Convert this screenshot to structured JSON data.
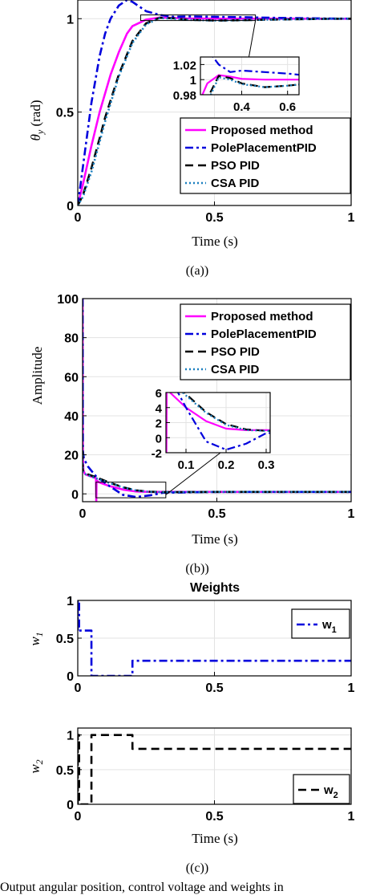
{
  "chart_data": [
    {
      "id": "a",
      "type": "line",
      "caption": "((a))",
      "xlabel": "Time (s)",
      "ylabel": "θ_y (rad)",
      "xlim": [
        0,
        1
      ],
      "ylim": [
        0,
        1.1
      ],
      "xticks": [
        0,
        0.5,
        1
      ],
      "xtick_labels": [
        "0",
        "0.5",
        "1"
      ],
      "yticks": [
        0,
        0.5,
        1
      ],
      "ytick_labels": [
        "0",
        "0.5",
        "1"
      ],
      "grid": true,
      "legend_position": "bottom-right",
      "series": [
        {
          "name": "Proposed method",
          "color": "#ff00ff",
          "dash": "solid",
          "x": [
            0,
            0.02,
            0.05,
            0.08,
            0.1,
            0.12,
            0.15,
            0.18,
            0.2,
            0.25,
            0.3,
            0.35,
            0.4,
            0.5,
            0.6,
            0.7,
            0.8,
            0.9,
            1.0
          ],
          "y": [
            0,
            0.12,
            0.32,
            0.5,
            0.6,
            0.7,
            0.82,
            0.92,
            0.96,
            0.995,
            1.006,
            1.004,
            1.001,
            1.0,
            1.0,
            1.0,
            1.0,
            1.0,
            1.0
          ]
        },
        {
          "name": "PolePlacementPID",
          "color": "#0000dd",
          "dash": "dashdot",
          "x": [
            0,
            0.02,
            0.05,
            0.08,
            0.1,
            0.12,
            0.15,
            0.18,
            0.2,
            0.22,
            0.25,
            0.3,
            0.35,
            0.4,
            0.5,
            0.6,
            0.7,
            0.8,
            0.9,
            1.0
          ],
          "y": [
            0,
            0.22,
            0.55,
            0.8,
            0.92,
            1.0,
            1.07,
            1.1,
            1.09,
            1.07,
            1.04,
            1.02,
            1.01,
            1.012,
            1.01,
            1.008,
            1.005,
            1.003,
            1.001,
            1.0
          ]
        },
        {
          "name": "PSO PID",
          "color": "#000000",
          "dash": "dash",
          "x": [
            0,
            0.02,
            0.05,
            0.08,
            0.1,
            0.15,
            0.2,
            0.25,
            0.3,
            0.35,
            0.4,
            0.5,
            0.6,
            0.7,
            0.8,
            0.9,
            1.0
          ],
          "y": [
            0,
            0.06,
            0.2,
            0.36,
            0.47,
            0.7,
            0.88,
            0.975,
            1.005,
            1.002,
            0.995,
            0.99,
            0.992,
            0.995,
            0.997,
            0.999,
            1.0
          ]
        },
        {
          "name": "CSA PID",
          "color": "#1a7fbf",
          "dash": "dot",
          "x": [
            0,
            0.02,
            0.05,
            0.08,
            0.1,
            0.15,
            0.2,
            0.25,
            0.3,
            0.35,
            0.4,
            0.5,
            0.6,
            0.7,
            0.8,
            0.9,
            1.0
          ],
          "y": [
            0,
            0.05,
            0.18,
            0.34,
            0.45,
            0.69,
            0.87,
            0.97,
            1.003,
            1.0,
            0.994,
            0.99,
            0.992,
            0.995,
            0.997,
            0.999,
            1.0
          ]
        }
      ],
      "inset": {
        "xlim": [
          0.22,
          0.65
        ],
        "ylim": [
          0.98,
          1.03
        ],
        "xticks": [
          0.4,
          0.6
        ],
        "xtick_labels": [
          "0.4",
          "0.6"
        ],
        "yticks": [
          0.98,
          1.0,
          1.02
        ],
        "ytick_labels": [
          "0.98",
          "1",
          "1.02"
        ],
        "zoom_x": [
          0.23,
          0.65
        ],
        "zoom_y": [
          0.99,
          1.02
        ]
      }
    },
    {
      "id": "b",
      "type": "line",
      "caption": "((b))",
      "xlabel": "Time (s)",
      "ylabel": "Amplitude",
      "xlim": [
        0,
        1
      ],
      "ylim": [
        -4,
        100
      ],
      "xticks": [
        0,
        0.5,
        1
      ],
      "xtick_labels": [
        "0",
        "0.5",
        "1"
      ],
      "yticks": [
        0,
        20,
        40,
        60,
        80,
        100
      ],
      "ytick_labels": [
        "0",
        "20",
        "40",
        "60",
        "80",
        "100"
      ],
      "grid": true,
      "legend_position": "top-right",
      "series": [
        {
          "name": "Proposed method",
          "color": "#ff00ff",
          "dash": "solid",
          "x": [
            0,
            0.001,
            0.003,
            0.01,
            0.03,
            0.05,
            0.051,
            0.052,
            0.06,
            0.1,
            0.15,
            0.2,
            0.25,
            0.3,
            0.5,
            1.0
          ],
          "y": [
            100,
            20,
            12,
            10,
            9,
            8,
            -4,
            7,
            6,
            4,
            2.2,
            1.2,
            1.0,
            1.0,
            1.0,
            1.0
          ]
        },
        {
          "name": "PolePlacementPID",
          "color": "#0000dd",
          "dash": "dashdot",
          "x": [
            0,
            0.001,
            0.005,
            0.02,
            0.05,
            0.1,
            0.15,
            0.2,
            0.25,
            0.3,
            0.5,
            1.0
          ],
          "y": [
            100,
            22,
            18,
            14,
            9,
            4,
            -0.5,
            -1.6,
            -0.8,
            0.6,
            1.0,
            1.0
          ]
        },
        {
          "name": "PSO PID",
          "color": "#000000",
          "dash": "dash",
          "x": [
            0,
            0.001,
            0.005,
            0.02,
            0.05,
            0.1,
            0.15,
            0.2,
            0.25,
            0.3,
            0.5,
            1.0
          ],
          "y": [
            22,
            12,
            11,
            10,
            8.5,
            5.8,
            3.4,
            1.8,
            1.1,
            0.9,
            1.0,
            1.0
          ]
        },
        {
          "name": "CSA PID",
          "color": "#1a7fbf",
          "dash": "dot",
          "x": [
            0,
            0.001,
            0.005,
            0.02,
            0.05,
            0.1,
            0.15,
            0.2,
            0.25,
            0.3,
            0.5,
            1.0
          ],
          "y": [
            20,
            11.5,
            10.5,
            9.5,
            8,
            5.6,
            3.3,
            1.7,
            1.0,
            0.9,
            1.0,
            1.0
          ]
        }
      ],
      "inset": {
        "xlim": [
          0.05,
          0.31
        ],
        "ylim": [
          -2,
          6
        ],
        "xticks": [
          0.1,
          0.2,
          0.3
        ],
        "xtick_labels": [
          "0.1",
          "0.2",
          "0.3"
        ],
        "yticks": [
          -2,
          0,
          2,
          4,
          6
        ],
        "ytick_labels": [
          "-2",
          "0",
          "2",
          "4",
          "6"
        ],
        "zoom_x": [
          0.05,
          0.31
        ],
        "zoom_y": [
          -2,
          6
        ]
      }
    },
    {
      "id": "c1",
      "type": "line",
      "title": "Weights",
      "ylabel": "w_1",
      "xlim": [
        0,
        1
      ],
      "ylim": [
        0,
        1
      ],
      "xticks": [
        0,
        0.5,
        1
      ],
      "xtick_labels": [
        "0",
        "0.5",
        "1"
      ],
      "yticks": [
        0,
        0.5,
        1
      ],
      "ytick_labels": [
        "0",
        "0.5",
        "1"
      ],
      "grid": true,
      "legend_position": "top-right",
      "series": [
        {
          "name": "w_1",
          "color": "#0000dd",
          "dash": "dashdot",
          "x": [
            0,
            0,
            0.005,
            0.005,
            0.05,
            0.05,
            0.2,
            0.2,
            1.0
          ],
          "y": [
            0.6,
            1.0,
            1.0,
            0.6,
            0.6,
            0,
            0,
            0.2,
            0.2
          ]
        }
      ]
    },
    {
      "id": "c2",
      "type": "line",
      "caption": "((c))",
      "xlabel": "Time (s)",
      "ylabel": "w_2",
      "xlim": [
        0,
        1
      ],
      "ylim": [
        0,
        1.1
      ],
      "xticks": [
        0,
        0.5,
        1
      ],
      "xtick_labels": [
        "0",
        "0.5",
        "1"
      ],
      "yticks": [
        0,
        0.5,
        1
      ],
      "ytick_labels": [
        "0",
        "0.5",
        "1"
      ],
      "grid": true,
      "legend_position": "bottom-right",
      "series": [
        {
          "name": "w_2",
          "color": "#000000",
          "dash": "dash",
          "x": [
            0,
            0,
            0.005,
            0.005,
            0.05,
            0.05,
            0.2,
            0.2,
            1.0
          ],
          "y": [
            0,
            1.0,
            1.0,
            0,
            0,
            1.0,
            1.0,
            0.8,
            0.8
          ]
        }
      ]
    }
  ],
  "footer_text": "Output angular position, control voltage and weights in"
}
